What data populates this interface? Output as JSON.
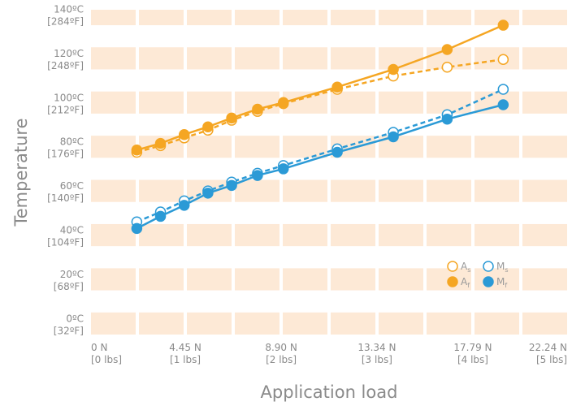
{
  "chart_data": {
    "type": "line",
    "xlabel": "Application load",
    "ylabel": "Temperature",
    "xlim": [
      0,
      22.24
    ],
    "ylim": [
      -5,
      142
    ],
    "x_ticks": [
      {
        "value": 0,
        "label": "0 N",
        "sublabel": "[0 lbs]"
      },
      {
        "value": 4.45,
        "label": "4.45 N",
        "sublabel": "[1 lbs]"
      },
      {
        "value": 8.9,
        "label": "8.90 N",
        "sublabel": "[2 lbs]"
      },
      {
        "value": 13.34,
        "label": "13.34 N",
        "sublabel": "[3 lbs]"
      },
      {
        "value": 17.79,
        "label": "17.79 N",
        "sublabel": "[4 lbs]"
      },
      {
        "value": 22.24,
        "label": "22.24 N",
        "sublabel": "[5 lbs]"
      }
    ],
    "y_ticks": [
      {
        "value": 0,
        "label": "0ºC",
        "sublabel": "[32ºF]"
      },
      {
        "value": 20,
        "label": "20ºC",
        "sublabel": "[68ºF]"
      },
      {
        "value": 40,
        "label": "40ºC",
        "sublabel": "[104ºF]"
      },
      {
        "value": 60,
        "label": "60ºC",
        "sublabel": "[140ºF]"
      },
      {
        "value": 80,
        "label": "80ºC",
        "sublabel": "[176ºF]"
      },
      {
        "value": 100,
        "label": "100ºC",
        "sublabel": "[212ºF]"
      },
      {
        "value": 120,
        "label": "120ºC",
        "sublabel": "[248ºF]"
      },
      {
        "value": 140,
        "label": "140ºC",
        "sublabel": "[284ºF]"
      }
    ],
    "bands": [
      [
        -5,
        5
      ],
      [
        15,
        25
      ],
      [
        35,
        45
      ],
      [
        55,
        65
      ],
      [
        75,
        85
      ],
      [
        95,
        105
      ],
      [
        115,
        125
      ],
      [
        135,
        142
      ]
    ],
    "band_color": "#fde9d6",
    "series": [
      {
        "name": "As",
        "label_main": "A",
        "label_sub": "s",
        "color": "#f5a623",
        "dashed": true,
        "filled": false,
        "points": [
          [
            2.2,
            77.5
          ],
          [
            3.3,
            80.5
          ],
          [
            4.4,
            84
          ],
          [
            5.5,
            87.5
          ],
          [
            6.6,
            92
          ],
          [
            7.8,
            96
          ],
          [
            9.0,
            99.5
          ],
          [
            11.5,
            106
          ],
          [
            14.1,
            112
          ],
          [
            16.6,
            116
          ],
          [
            19.2,
            119.5
          ]
        ]
      },
      {
        "name": "Af",
        "label_main": "A",
        "label_sub": "f",
        "color": "#f5a623",
        "dashed": false,
        "filled": true,
        "points": [
          [
            2.2,
            78.5
          ],
          [
            3.3,
            81.5
          ],
          [
            4.4,
            85.5
          ],
          [
            5.5,
            89
          ],
          [
            6.6,
            93
          ],
          [
            7.8,
            97
          ],
          [
            9.0,
            100
          ],
          [
            11.5,
            107
          ],
          [
            14.1,
            115
          ],
          [
            16.6,
            124
          ],
          [
            19.2,
            135
          ]
        ]
      },
      {
        "name": "Ms",
        "label_main": "M",
        "label_sub": "s",
        "color": "#2b9ad6",
        "dashed": true,
        "filled": false,
        "points": [
          [
            2.2,
            46
          ],
          [
            3.3,
            50.5
          ],
          [
            4.4,
            55.5
          ],
          [
            5.5,
            60
          ],
          [
            6.6,
            64
          ],
          [
            7.8,
            68
          ],
          [
            9.0,
            71.5
          ],
          [
            11.5,
            79
          ],
          [
            14.1,
            86.5
          ],
          [
            16.6,
            94.5
          ],
          [
            19.2,
            106
          ]
        ]
      },
      {
        "name": "Mf",
        "label_main": "M",
        "label_sub": "f",
        "color": "#2b9ad6",
        "dashed": false,
        "filled": true,
        "points": [
          [
            2.2,
            43
          ],
          [
            3.3,
            48.5
          ],
          [
            4.4,
            53.5
          ],
          [
            5.5,
            59
          ],
          [
            6.6,
            62.5
          ],
          [
            7.8,
            67
          ],
          [
            9.0,
            70
          ],
          [
            11.5,
            77.5
          ],
          [
            14.1,
            84.5
          ],
          [
            16.6,
            92.5
          ],
          [
            19.2,
            99
          ]
        ]
      }
    ],
    "legend": {
      "placement": "bottom-right"
    }
  }
}
